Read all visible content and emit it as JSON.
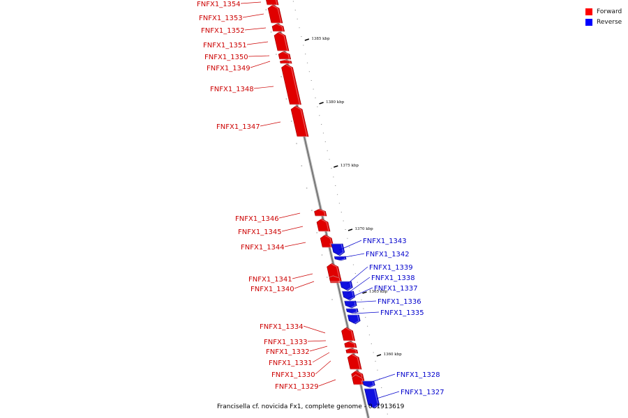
{
  "legend": [
    {
      "label": "Forward",
      "color": "#ff0000"
    },
    {
      "label": "Reverse",
      "color": "#0000ff"
    }
  ],
  "caption": "Francisella cf. novicida Fx1, complete genome - 0..1913619",
  "colors": {
    "forward": "#e00000",
    "reverse": "#1010e0",
    "backbone": "#8a8a8a"
  },
  "ticks": [
    "1385 kbp",
    "1380 kbp",
    "1375 kbp",
    "1370 kbp",
    "1365 kbp",
    "1360 kbp"
  ],
  "genes": [
    {
      "name": "FNFX1_1354",
      "strand": "forward"
    },
    {
      "name": "FNFX1_1353",
      "strand": "forward"
    },
    {
      "name": "FNFX1_1352",
      "strand": "forward"
    },
    {
      "name": "FNFX1_1351",
      "strand": "forward"
    },
    {
      "name": "FNFX1_1350",
      "strand": "forward"
    },
    {
      "name": "FNFX1_1349",
      "strand": "forward"
    },
    {
      "name": "FNFX1_1348",
      "strand": "forward"
    },
    {
      "name": "FNFX1_1347",
      "strand": "forward"
    },
    {
      "name": "FNFX1_1346",
      "strand": "forward"
    },
    {
      "name": "FNFX1_1345",
      "strand": "forward"
    },
    {
      "name": "FNFX1_1344",
      "strand": "forward"
    },
    {
      "name": "FNFX1_1343",
      "strand": "reverse"
    },
    {
      "name": "FNFX1_1342",
      "strand": "reverse"
    },
    {
      "name": "FNFX1_1341",
      "strand": "forward"
    },
    {
      "name": "FNFX1_1340",
      "strand": "forward"
    },
    {
      "name": "FNFX1_1339",
      "strand": "reverse"
    },
    {
      "name": "FNFX1_1338",
      "strand": "reverse"
    },
    {
      "name": "FNFX1_1337",
      "strand": "reverse"
    },
    {
      "name": "FNFX1_1336",
      "strand": "reverse"
    },
    {
      "name": "FNFX1_1335",
      "strand": "reverse"
    },
    {
      "name": "FNFX1_1334",
      "strand": "forward"
    },
    {
      "name": "FNFX1_1333",
      "strand": "forward"
    },
    {
      "name": "FNFX1_1332",
      "strand": "forward"
    },
    {
      "name": "FNFX1_1331",
      "strand": "forward"
    },
    {
      "name": "FNFX1_1330",
      "strand": "forward"
    },
    {
      "name": "FNFX1_1329",
      "strand": "forward"
    },
    {
      "name": "FNFX1_1328",
      "strand": "reverse"
    },
    {
      "name": "FNFX1_1327",
      "strand": "reverse"
    }
  ]
}
